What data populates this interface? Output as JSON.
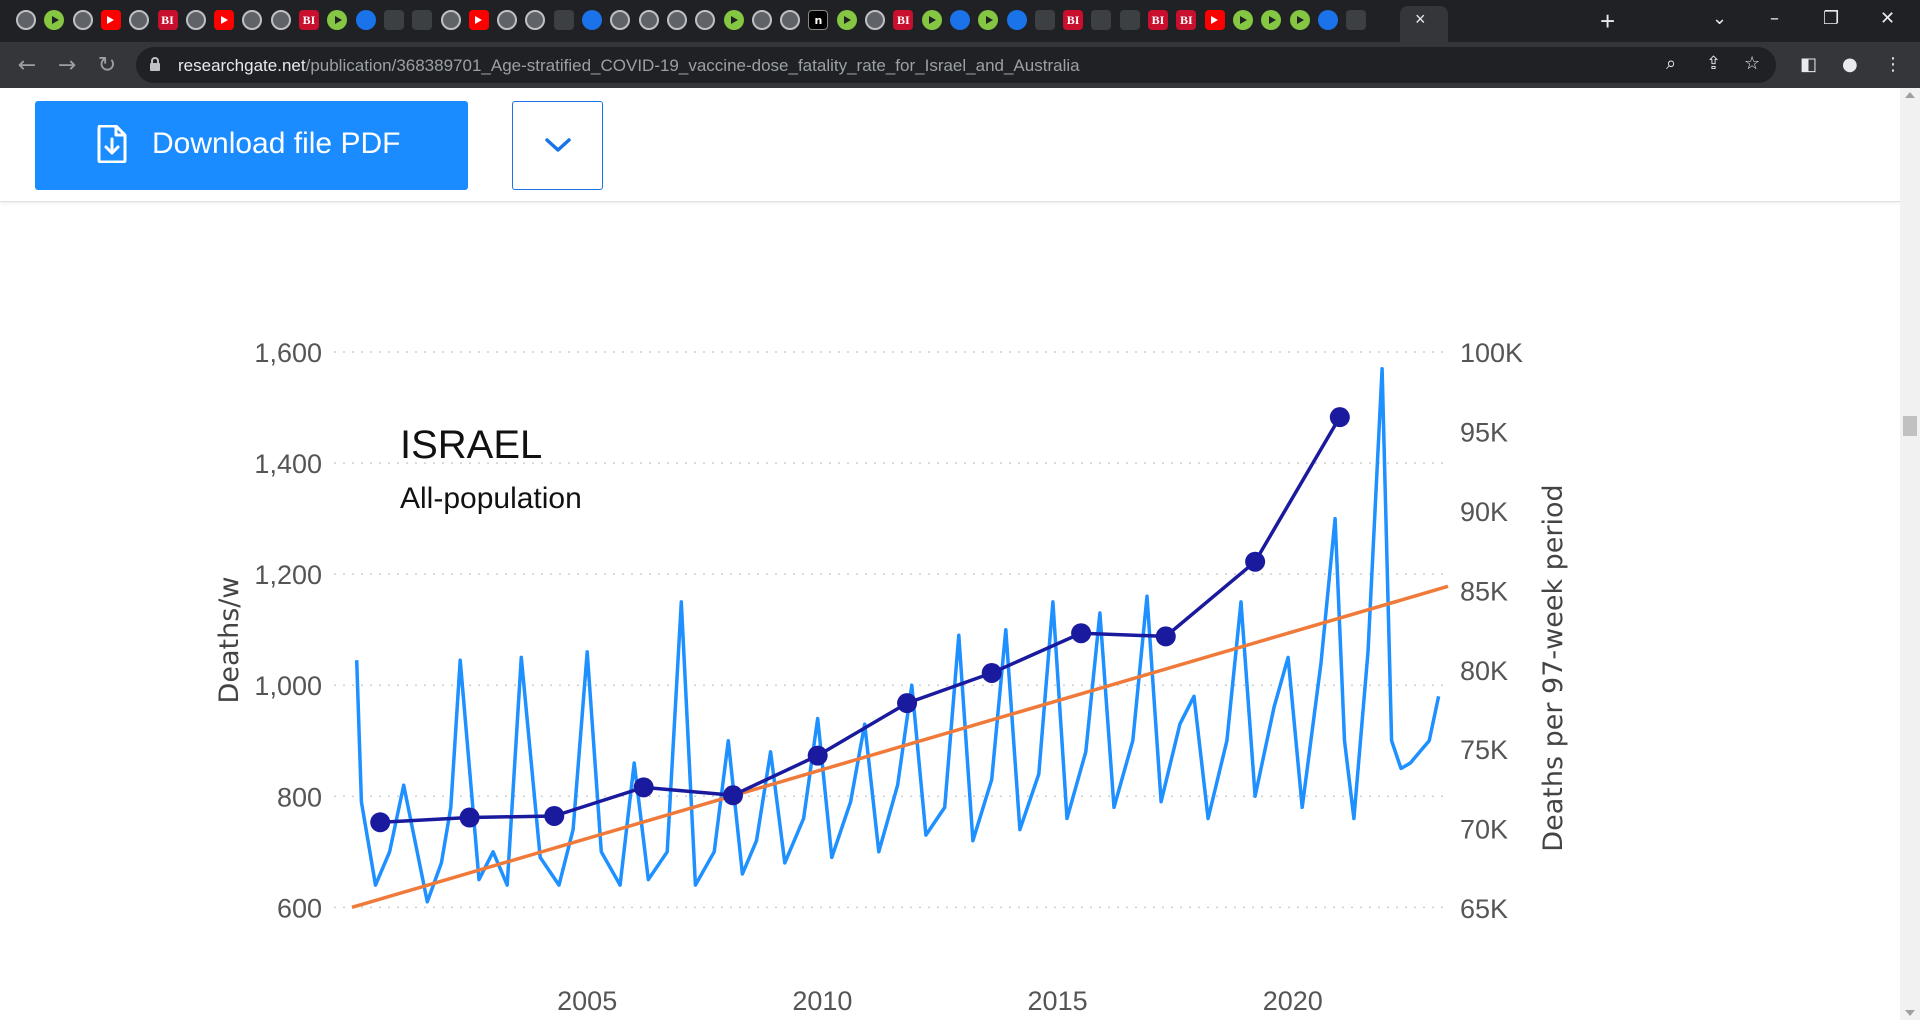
{
  "browser": {
    "url_host": "researchgate.net",
    "url_path": "/publication/368389701_Age-stratified_COVID-19_vaccine-dose_fatality_rate_for_Israel_and_Australia",
    "new_tab_symbol": "+",
    "tab_close_symbol": "×"
  },
  "page": {
    "download_label": "Download file PDF"
  },
  "colors": {
    "weekly_line": "#1e90ff",
    "period_line": "#1a1a9e",
    "trend_line": "#f07a3a",
    "button": "#1a8cff"
  },
  "chart_data": {
    "type": "line",
    "annotation_title": "ISRAEL",
    "annotation_subtitle": "All-population",
    "ylabel_left": "Deaths/w",
    "ylabel_right": "Deaths per 97-week period",
    "x_ticks": [
      "2005",
      "2010",
      "2015",
      "2020"
    ],
    "x_tick_values": [
      2005,
      2010,
      2015,
      2020
    ],
    "y_left_ticks": [
      "1,600",
      "1,400",
      "1,200",
      "1,000",
      "800",
      "600"
    ],
    "y_left_tick_values": [
      1600,
      1400,
      1200,
      1000,
      800,
      600
    ],
    "y_right_ticks": [
      "100K",
      "95K",
      "90K",
      "85K",
      "80K",
      "75K",
      "70K",
      "65K"
    ],
    "y_right_tick_values": [
      100000,
      95000,
      90000,
      85000,
      80000,
      75000,
      70000,
      65000
    ],
    "xlim": [
      2000.0,
      2023.3
    ],
    "ylim_left": [
      570,
      1600
    ],
    "ylim_right": [
      64000,
      100000
    ],
    "grid": "horizontal dotted",
    "series": [
      {
        "kind": "weekly",
        "unit": "deaths per week",
        "x": [
          2000.1,
          2000.2,
          2000.5,
          2000.8,
          2001.1,
          2001.6,
          2001.9,
          2002.1,
          2002.3,
          2002.7,
          2003.0,
          2003.3,
          2003.6,
          2004.0,
          2004.4,
          2004.7,
          2005.0,
          2005.3,
          2005.7,
          2006.0,
          2006.3,
          2006.7,
          2007.0,
          2007.3,
          2007.7,
          2008.0,
          2008.3,
          2008.6,
          2008.9,
          2009.2,
          2009.6,
          2009.9,
          2010.2,
          2010.6,
          2010.9,
          2011.2,
          2011.6,
          2011.9,
          2012.2,
          2012.6,
          2012.9,
          2013.2,
          2013.6,
          2013.9,
          2014.2,
          2014.6,
          2014.9,
          2015.2,
          2015.6,
          2015.9,
          2016.2,
          2016.6,
          2016.9,
          2017.2,
          2017.6,
          2017.9,
          2018.2,
          2018.6,
          2018.9,
          2019.2,
          2019.6,
          2019.9,
          2020.2,
          2020.6,
          2020.9,
          2021.1,
          2021.3,
          2021.6,
          2021.9,
          2022.1,
          2022.3,
          2022.5,
          2022.7,
          2022.9,
          2023.1
        ],
        "values": [
          1045,
          790,
          640,
          700,
          820,
          610,
          680,
          780,
          1045,
          650,
          700,
          640,
          1050,
          690,
          640,
          740,
          1060,
          700,
          640,
          860,
          650,
          700,
          1150,
          640,
          700,
          900,
          660,
          720,
          880,
          680,
          760,
          940,
          690,
          790,
          930,
          700,
          820,
          1000,
          730,
          780,
          1090,
          720,
          830,
          1100,
          740,
          840,
          1150,
          760,
          880,
          1130,
          780,
          900,
          1160,
          790,
          930,
          980,
          760,
          900,
          1150,
          800,
          960,
          1050,
          780,
          1040,
          1300,
          900,
          760,
          1060,
          1570,
          900,
          850,
          860,
          880,
          900,
          980
        ]
      },
      {
        "kind": "97-week period totals",
        "unit": "deaths per 97-week period",
        "x": [
          2000.6,
          2002.5,
          2004.3,
          2006.2,
          2008.1,
          2009.9,
          2011.8,
          2013.6,
          2015.5,
          2017.3,
          2019.2,
          2021.0
        ],
        "values": [
          70400,
          70700,
          70800,
          72600,
          72100,
          74600,
          77900,
          79800,
          82300,
          82100,
          86800,
          95900
        ]
      },
      {
        "kind": "linear trend",
        "unit": "deaths per week",
        "x": [
          2000.0,
          2023.3
        ],
        "values": [
          600,
          1178
        ]
      }
    ]
  }
}
